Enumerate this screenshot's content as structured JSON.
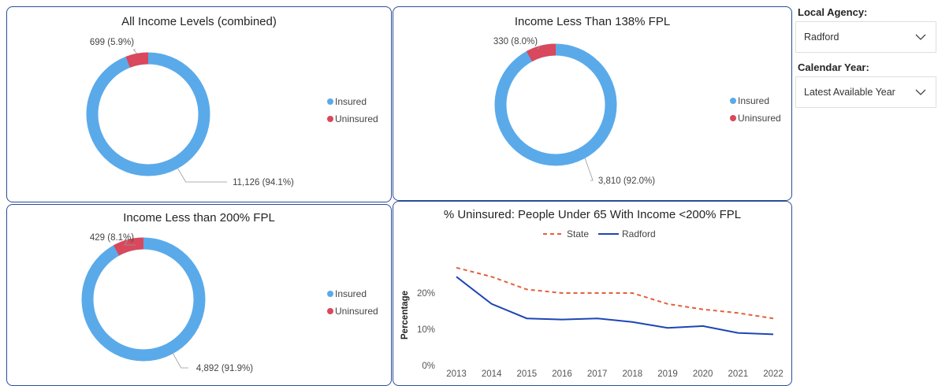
{
  "colors": {
    "insured": "#5aaaea",
    "uninsured": "#d9485c",
    "state": "#e2613d",
    "local": "#1f45b5",
    "border": "#2b4d96"
  },
  "donuts": [
    {
      "title": "All Income Levels (combined)",
      "insured_label": "11,126 (94.1%)",
      "uninsured_label": "699 (5.9%)",
      "insured_value": 11126,
      "uninsured_value": 699,
      "legend": [
        "Insured",
        "Uninsured"
      ]
    },
    {
      "title": "Income Less Than 138% FPL",
      "insured_label": "3,810 (92.0%)",
      "uninsured_label": "330 (8.0%)",
      "insured_value": 3810,
      "uninsured_value": 330,
      "legend": [
        "Insured",
        "Uninsured"
      ]
    },
    {
      "title": "Income Less than 200% FPL",
      "insured_label": "4,892 (91.9%)",
      "uninsured_label": "429 (8.1%)",
      "insured_value": 4892,
      "uninsured_value": 429,
      "legend": [
        "Insured",
        "Uninsured"
      ]
    }
  ],
  "slicers": {
    "agency": {
      "label": "Local Agency:",
      "value": "Radford",
      "icon": "chevron-down-icon"
    },
    "year": {
      "label": "Calendar Year:",
      "value": "Latest Available Year",
      "icon": "chevron-down-icon"
    }
  },
  "chart_data": {
    "type": "line",
    "title": "% Uninsured: People Under 65 With Income <200% FPL",
    "ylabel": "Percentage",
    "xlabel": "",
    "ylim": [
      0,
      0.3
    ],
    "yticks": [
      0,
      0.1,
      0.2
    ],
    "ytick_labels": [
      "0%",
      "10%",
      "20%"
    ],
    "categories": [
      "2013",
      "2014",
      "2015",
      "2016",
      "2017",
      "2018",
      "2019",
      "2020",
      "2021",
      "2022"
    ],
    "legend_position": "top-center",
    "series": [
      {
        "name": "State",
        "style": "dashed",
        "values": [
          0.27,
          0.245,
          0.21,
          0.2,
          0.2,
          0.2,
          0.17,
          0.155,
          0.145,
          0.13
        ]
      },
      {
        "name": "Radford",
        "style": "solid",
        "values": [
          0.245,
          0.17,
          0.13,
          0.127,
          0.13,
          0.12,
          0.104,
          0.109,
          0.09,
          0.086
        ]
      }
    ]
  }
}
